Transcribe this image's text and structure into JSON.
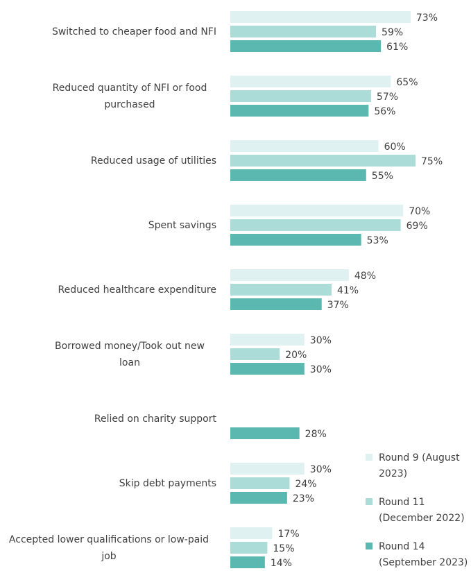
{
  "chart_data": {
    "type": "bar",
    "orientation": "horizontal",
    "categories": [
      "Switched to cheaper food and NFI",
      "Reduced quantity of NFI or food purchased",
      "Reduced usage of utilities",
      "Spent savings",
      "Reduced healthcare expenditure",
      "Borrowed money/Took out new loan",
      "Relied on charity support",
      "Skip debt payments",
      "Accepted lower qualifications or low-paid job"
    ],
    "series": [
      {
        "name": "Round 9 (August 2023)",
        "color": "#dff1f0",
        "values": [
          73,
          65,
          60,
          70,
          48,
          30,
          null,
          30,
          17
        ],
        "value_labels": [
          "73%",
          "65%",
          "60%",
          "70%",
          "48%",
          "30%",
          null,
          "30%",
          "17%"
        ]
      },
      {
        "name": "Round 11 (December 2022)",
        "color": "#acdcd8",
        "values": [
          59,
          57,
          75,
          69,
          41,
          20,
          null,
          24,
          15
        ],
        "value_labels": [
          "59%",
          "57%",
          "75%",
          "69%",
          "41%",
          "20%",
          null,
          "24%",
          "15%"
        ]
      },
      {
        "name": "Round 14 (September 2023)",
        "color": "#5bb8b0",
        "values": [
          61,
          56,
          55,
          53,
          37,
          30,
          28,
          23,
          14
        ],
        "value_labels": [
          "61%",
          "56%",
          "55%",
          "53%",
          "37%",
          "30%",
          "28%",
          "23%",
          "14%"
        ]
      }
    ],
    "legend": "bottom-right"
  }
}
